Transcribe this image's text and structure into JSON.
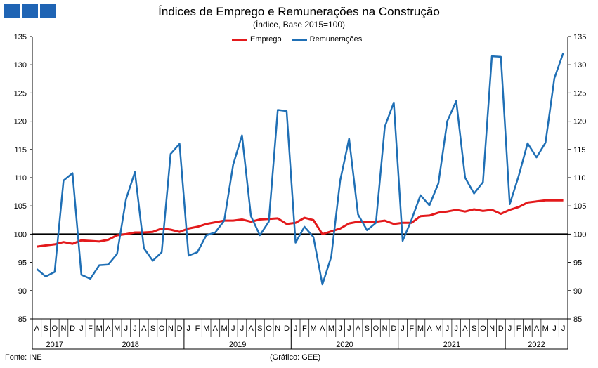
{
  "logo_color": "#1f64b4",
  "chart_data": {
    "type": "line",
    "title": "Índices de Emprego e Remunerações na Construção",
    "subtitle": "(Índice, Base 2015=100)",
    "ylim": [
      85,
      135
    ],
    "yticks": [
      85,
      90,
      95,
      100,
      105,
      110,
      115,
      120,
      125,
      130,
      135
    ],
    "reference_line": 100,
    "legend_position": "top-center",
    "grid": false,
    "x": [
      "A",
      "S",
      "O",
      "N",
      "D",
      "J",
      "F",
      "M",
      "A",
      "M",
      "J",
      "J",
      "A",
      "S",
      "O",
      "N",
      "D",
      "J",
      "F",
      "M",
      "A",
      "M",
      "J",
      "J",
      "A",
      "S",
      "O",
      "N",
      "D",
      "J",
      "F",
      "M",
      "A",
      "M",
      "J",
      "J",
      "A",
      "S",
      "O",
      "N",
      "D",
      "J",
      "F",
      "M",
      "A",
      "M",
      "J",
      "J",
      "A",
      "S",
      "O",
      "N",
      "D",
      "J",
      "F",
      "M",
      "A",
      "M",
      "J",
      "J"
    ],
    "years": [
      {
        "label": "2017",
        "start": 0,
        "end": 4
      },
      {
        "label": "2018",
        "start": 5,
        "end": 16
      },
      {
        "label": "2019",
        "start": 17,
        "end": 28
      },
      {
        "label": "2020",
        "start": 29,
        "end": 40
      },
      {
        "label": "2021",
        "start": 41,
        "end": 52
      },
      {
        "label": "2022",
        "start": 53,
        "end": 59
      }
    ],
    "series": [
      {
        "name": "Emprego",
        "color": "#e31a1c",
        "values": [
          97.8,
          98.0,
          98.2,
          98.6,
          98.3,
          98.9,
          98.8,
          98.7,
          99.0,
          99.8,
          100.0,
          100.3,
          100.3,
          100.4,
          101.0,
          100.8,
          100.4,
          101.0,
          101.3,
          101.8,
          102.1,
          102.4,
          102.4,
          102.6,
          102.2,
          102.6,
          102.7,
          102.8,
          101.8,
          102.0,
          102.9,
          102.5,
          100.0,
          100.5,
          101.0,
          101.9,
          102.2,
          102.2,
          102.2,
          102.4,
          101.8,
          102.0,
          102.0,
          103.2,
          103.3,
          103.8,
          104.0,
          104.3,
          104.0,
          104.4,
          104.1,
          104.3,
          103.6,
          104.3,
          104.8,
          105.6,
          105.8,
          106.0,
          106.0,
          106.0
        ]
      },
      {
        "name": "Remunerações",
        "color": "#1f6fb5",
        "values": [
          93.8,
          92.5,
          93.3,
          109.5,
          110.8,
          92.8,
          92.1,
          94.5,
          94.6,
          96.5,
          106.2,
          111.0,
          97.5,
          95.3,
          96.8,
          114.2,
          116.0,
          96.2,
          96.8,
          99.8,
          100.3,
          102.4,
          112.3,
          117.5,
          103.2,
          99.8,
          102.2,
          122.0,
          121.8,
          98.5,
          101.3,
          99.5,
          91.1,
          96.0,
          109.5,
          116.9,
          103.5,
          100.7,
          102.0,
          119.0,
          123.3,
          98.8,
          102.6,
          106.9,
          105.1,
          109.0,
          120.0,
          123.6,
          110.0,
          107.2,
          109.2,
          131.5,
          131.4,
          105.3,
          110.3,
          116.1,
          113.6,
          116.2,
          127.6,
          132.1
        ]
      }
    ]
  },
  "footer": {
    "source": "Fonte: INE",
    "credit": "(Gráfico: GEE)"
  }
}
